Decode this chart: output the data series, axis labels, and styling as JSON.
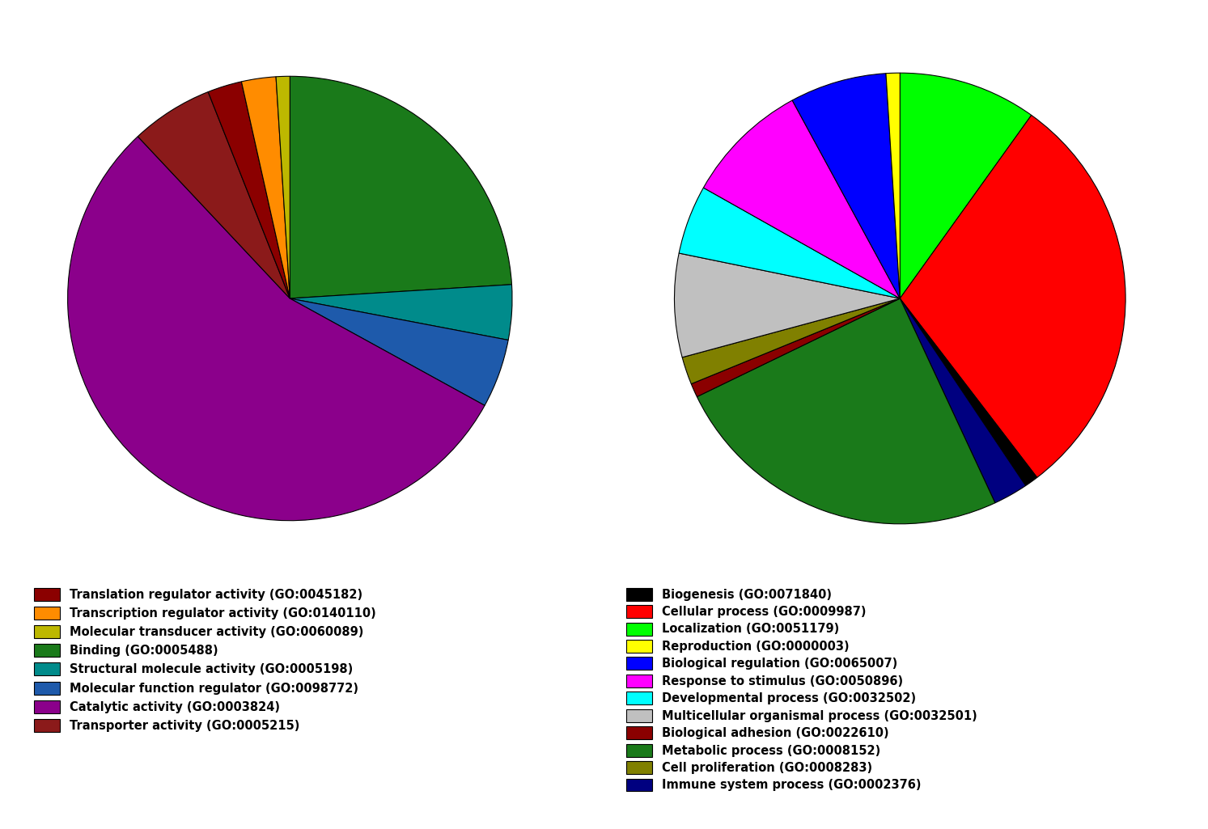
{
  "pie1_labels": [
    "Binding (GO:0005488)",
    "Structural molecule activity (GO:0005198)",
    "Molecular function regulator (GO:0098772)",
    "Catalytic activity (GO:0003824)",
    "Transporter activity (GO:0005215)",
    "Translation regulator activity (GO:0045182)",
    "Transcription regulator activity (GO:0140110)",
    "Molecular transducer activity (GO:0060089)"
  ],
  "pie1_values": [
    24.0,
    4.0,
    5.0,
    55.0,
    6.0,
    2.5,
    2.5,
    1.0
  ],
  "pie1_colors": [
    "#1A7A1A",
    "#008B8B",
    "#1E5AAB",
    "#8B008B",
    "#8B1A1A",
    "#8B0000",
    "#FF8C00",
    "#BDB800"
  ],
  "pie1_startangle": 90,
  "pie2_labels": [
    "Localization (GO:0051179)",
    "Cellular process (GO:0009987)",
    "Biogenesis (GO:0071840)",
    "Immune system process (GO:0002376)",
    "Metabolic process (GO:0008152)",
    "Biological adhesion (GO:0022610)",
    "Cell proliferation (GO:0008283)",
    "Multicellular organismal process (GO:0032501)",
    "Developmental process (GO:0032502)",
    "Response to stimulus (GO:0050896)",
    "Biological regulation (GO:0065007)",
    "Reproduction (GO:0000003)"
  ],
  "pie2_values": [
    10.0,
    30.0,
    1.0,
    2.5,
    25.0,
    1.0,
    2.0,
    7.5,
    5.0,
    9.0,
    7.0,
    1.0
  ],
  "pie2_colors": [
    "#00FF00",
    "#FF0000",
    "#000000",
    "#000080",
    "#1A7A1A",
    "#8B0000",
    "#808000",
    "#C0C0C0",
    "#00FFFF",
    "#FF00FF",
    "#0000FF",
    "#FFFF00"
  ],
  "pie2_startangle": 90,
  "legend1_labels": [
    "Translation regulator activity (GO:0045182)",
    "Transcription regulator activity (GO:0140110)",
    "Molecular transducer activity (GO:0060089)",
    "Binding (GO:0005488)",
    "Structural molecule activity (GO:0005198)",
    "Molecular function regulator (GO:0098772)",
    "Catalytic activity (GO:0003824)",
    "Transporter activity (GO:0005215)"
  ],
  "legend1_colors": [
    "#8B0000",
    "#FF8C00",
    "#BDB800",
    "#1A7A1A",
    "#008B8B",
    "#1E5AAB",
    "#8B008B",
    "#8B1A1A"
  ],
  "legend2_labels": [
    "Biogenesis (GO:0071840)",
    "Cellular process (GO:0009987)",
    "Localization (GO:0051179)",
    "Reproduction (GO:0000003)",
    "Biological regulation (GO:0065007)",
    "Response to stimulus (GO:0050896)",
    "Developmental process (GO:0032502)",
    "Multicellular organismal process (GO:0032501)",
    "Biological adhesion (GO:0022610)",
    "Metabolic process (GO:0008152)",
    "Cell proliferation (GO:0008283)",
    "Immune system process (GO:0002376)"
  ],
  "legend2_colors": [
    "#000000",
    "#FF0000",
    "#00FF00",
    "#FFFF00",
    "#0000FF",
    "#FF00FF",
    "#00FFFF",
    "#C0C0C0",
    "#8B0000",
    "#1A7A1A",
    "#808000",
    "#000080"
  ]
}
